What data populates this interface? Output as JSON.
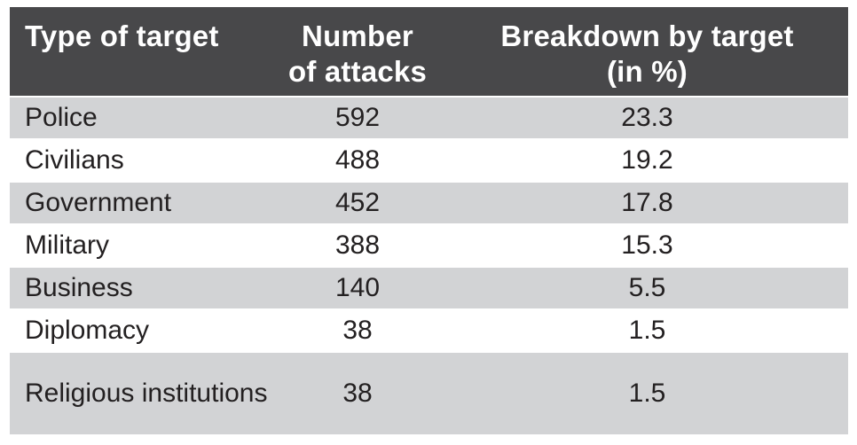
{
  "colors": {
    "header_bg": "#48484a",
    "header_text": "#ffffff",
    "row_shade_bg": "#d2d3d5",
    "row_plain_bg": "#ffffff",
    "body_text": "#232021"
  },
  "table": {
    "header": {
      "col1": "Type of target",
      "col2_line1": "Number",
      "col2_line2": "of attacks",
      "col3_line1": "Breakdown by target",
      "col3_line2": "(in %)"
    },
    "rows": [
      {
        "target": "Police",
        "attacks": "592",
        "pct": "23.3"
      },
      {
        "target": "Civilians",
        "attacks": "488",
        "pct": "19.2"
      },
      {
        "target": "Government",
        "attacks": "452",
        "pct": "17.8"
      },
      {
        "target": "Military",
        "attacks": "388",
        "pct": "15.3"
      },
      {
        "target": "Business",
        "attacks": "140",
        "pct": "5.5"
      },
      {
        "target": "Diplomacy",
        "attacks": "38",
        "pct": "1.5"
      },
      {
        "target": "Religious institutions",
        "attacks": "38",
        "pct": "1.5"
      }
    ]
  },
  "chart_data": {
    "type": "table",
    "title": "",
    "columns": [
      "Type of target",
      "Number of attacks",
      "Breakdown by target (in %)"
    ],
    "rows": [
      [
        "Police",
        592,
        23.3
      ],
      [
        "Civilians",
        488,
        19.2
      ],
      [
        "Government",
        452,
        17.8
      ],
      [
        "Military",
        388,
        15.3
      ],
      [
        "Business",
        140,
        5.5
      ],
      [
        "Diplomacy",
        38,
        1.5
      ],
      [
        "Religious institutions",
        38,
        1.5
      ]
    ]
  }
}
